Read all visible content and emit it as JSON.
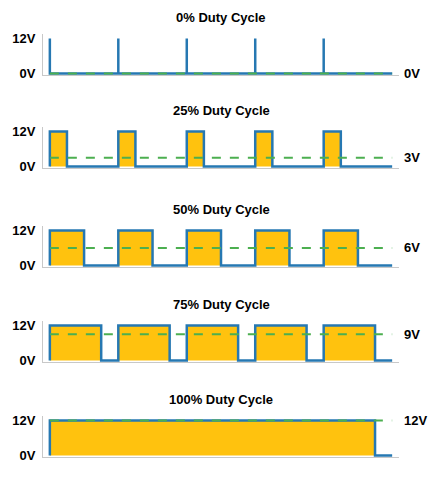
{
  "chart_data": [
    {
      "type": "line",
      "title": "0% Duty Cycle",
      "color": "#2678b2",
      "x": [
        0,
        0,
        0,
        1,
        1,
        1,
        2,
        2,
        2,
        3,
        3,
        3,
        4,
        4,
        4,
        5
      ],
      "values": [
        0,
        12,
        0,
        0,
        12,
        0,
        0,
        12,
        0,
        0,
        12,
        0,
        0,
        12,
        0,
        0
      ],
      "xlim": [
        -0.1,
        5.1
      ],
      "ylim": [
        -0.5,
        13.5
      ],
      "yticks": [
        {
          "value": 12,
          "label": "12V"
        },
        {
          "value": 0,
          "label": "0V"
        }
      ],
      "tick_labels": "y",
      "grid": false,
      "average": {
        "value": 0,
        "label": "0V",
        "color": "#4caf50",
        "line_style": "dashed"
      }
    },
    {
      "type": "line",
      "title": "25% Duty Cycle",
      "color": "#2678b2",
      "x": [
        0,
        0,
        0.25,
        0.25,
        1,
        1,
        1.25,
        1.25,
        2,
        2,
        2.25,
        2.25,
        3,
        3,
        3.25,
        3.25,
        4,
        4,
        4.25,
        4.25,
        5
      ],
      "values": [
        0,
        12,
        12,
        0,
        0,
        12,
        12,
        0,
        0,
        12,
        12,
        0,
        0,
        12,
        12,
        0,
        0,
        12,
        12,
        0,
        0
      ],
      "xlim": [
        -0.1,
        5.1
      ],
      "ylim": [
        -0.5,
        13.5
      ],
      "yticks": [
        {
          "value": 12,
          "label": "12V"
        },
        {
          "value": 0,
          "label": "0V"
        }
      ],
      "tick_labels": "y",
      "grid": false,
      "average": {
        "value": 3,
        "label": "3V",
        "color": "#4caf50",
        "line_style": "dashed"
      }
    },
    {
      "type": "line",
      "title": "50% Duty Cycle",
      "color": "#2678b2",
      "x": [
        0,
        0,
        0.5,
        0.5,
        1,
        1,
        1.5,
        1.5,
        2,
        2,
        2.5,
        2.5,
        3,
        3,
        3.5,
        3.5,
        4,
        4,
        4.5,
        4.5,
        5
      ],
      "values": [
        0,
        12,
        12,
        0,
        0,
        12,
        12,
        0,
        0,
        12,
        12,
        0,
        0,
        12,
        12,
        0,
        0,
        12,
        12,
        0,
        0
      ],
      "xlim": [
        -0.1,
        5.1
      ],
      "ylim": [
        -0.5,
        13.5
      ],
      "yticks": [
        {
          "value": 12,
          "label": "12V"
        },
        {
          "value": 0,
          "label": "0V"
        }
      ],
      "tick_labels": "y",
      "grid": false,
      "average": {
        "value": 6,
        "label": "6V",
        "color": "#4caf50",
        "line_style": "dashed"
      }
    },
    {
      "type": "line",
      "title": "75% Duty Cycle",
      "color": "#2678b2",
      "x": [
        0,
        0,
        0.75,
        0.75,
        1,
        1,
        1.75,
        1.75,
        2,
        2,
        2.75,
        2.75,
        3,
        3,
        3.75,
        3.75,
        4,
        4,
        4.75,
        4.75,
        5
      ],
      "values": [
        0,
        12,
        12,
        0,
        0,
        12,
        12,
        0,
        0,
        12,
        12,
        0,
        0,
        12,
        12,
        0,
        0,
        12,
        12,
        0,
        0
      ],
      "xlim": [
        -0.1,
        5.1
      ],
      "ylim": [
        -0.5,
        13.5
      ],
      "yticks": [
        {
          "value": 12,
          "label": "12V"
        },
        {
          "value": 0,
          "label": "0V"
        }
      ],
      "tick_labels": "y",
      "grid": false,
      "average": {
        "value": 9,
        "label": "9V",
        "color": "#4caf50",
        "line_style": "dashed"
      }
    },
    {
      "type": "line",
      "title": "100% Duty Cycle",
      "color": "#2678b2",
      "x": [
        0,
        0,
        4.75,
        4.75,
        5
      ],
      "values": [
        0,
        12,
        12,
        0,
        0
      ],
      "xlim": [
        -0.1,
        5.1
      ],
      "ylim": [
        -0.5,
        13.5
      ],
      "yticks": [
        {
          "value": 12,
          "label": "12V"
        },
        {
          "value": 0,
          "label": "0V"
        }
      ],
      "tick_labels": "y",
      "grid": false,
      "average": {
        "value": 12,
        "label": "12V",
        "color": "#4caf50",
        "line_style": "dashed"
      }
    }
  ]
}
